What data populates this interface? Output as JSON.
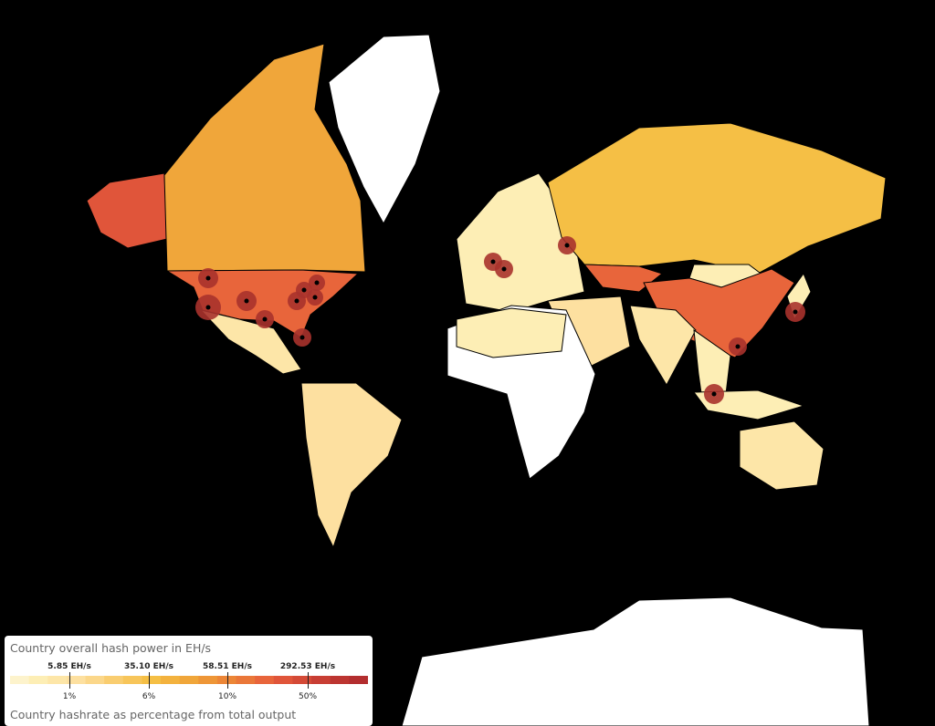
{
  "legend": {
    "title": "Country overall hash power in EH/s",
    "ticks": [
      {
        "hash": "5.85 EH/s",
        "percent": "1%"
      },
      {
        "hash": "35.10 EH/s",
        "percent": "6%"
      },
      {
        "hash": "58.51 EH/s",
        "percent": "10%"
      },
      {
        "hash": "292.53 EH/s",
        "percent": "50%"
      }
    ],
    "subtitle": "Country hashrate as percentage from total output"
  }
}
